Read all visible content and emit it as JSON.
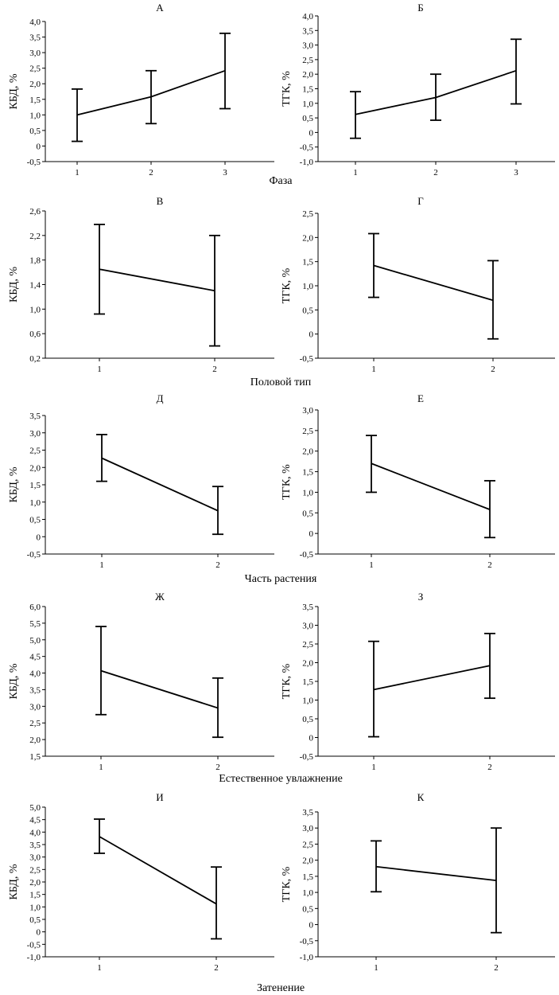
{
  "chart_data": [
    {
      "type": "line",
      "title": "А",
      "ylabel": "КБД, %",
      "ylim": [
        -0.5,
        4.0
      ],
      "yticks": [
        "-0,5",
        "0",
        "0,5",
        "1,0",
        "1,5",
        "2,0",
        "2,5",
        "3,0",
        "3,5",
        "4,0"
      ],
      "x": [
        "1",
        "2",
        "3"
      ],
      "y": [
        1.0,
        1.58,
        2.42
      ],
      "err_low": [
        0.15,
        0.72,
        1.2
      ],
      "err_high": [
        1.83,
        2.42,
        3.62
      ]
    },
    {
      "type": "line",
      "title": "Б",
      "ylabel": "ТГК, %",
      "ylim": [
        -1.0,
        4.0
      ],
      "yticks": [
        "-1,0",
        "-0,5",
        "0",
        "0,5",
        "1,0",
        "1,5",
        "2,0",
        "2,5",
        "3,0",
        "3,5",
        "4,0"
      ],
      "x": [
        "1",
        "2",
        "3"
      ],
      "y": [
        0.62,
        1.2,
        2.12
      ],
      "err_low": [
        -0.2,
        0.42,
        0.98
      ],
      "err_high": [
        1.4,
        2.0,
        3.2
      ]
    },
    {
      "type": "line",
      "title": "В",
      "ylabel": "КБД, %",
      "ylim": [
        0.2,
        2.6
      ],
      "yticks": [
        "0,2",
        "0,6",
        "1,0",
        "1,4",
        "1,8",
        "2,2",
        "2,6"
      ],
      "x": [
        "1",
        "2"
      ],
      "y": [
        1.65,
        1.3
      ],
      "err_low": [
        0.92,
        0.4
      ],
      "err_high": [
        2.38,
        2.2
      ]
    },
    {
      "type": "line",
      "title": "Г",
      "ylabel": "ТГК, %",
      "ylim": [
        -0.5,
        2.5
      ],
      "yticks": [
        "-0,5",
        "0",
        "0,5",
        "1,0",
        "1,5",
        "2,0",
        "2,5"
      ],
      "x": [
        "1",
        "2"
      ],
      "y": [
        1.42,
        0.7
      ],
      "err_low": [
        0.76,
        -0.1
      ],
      "err_high": [
        2.08,
        1.52
      ]
    },
    {
      "type": "line",
      "title": "Д",
      "ylabel": "КБД, %",
      "ylim": [
        -0.5,
        3.5
      ],
      "yticks": [
        "-0,5",
        "0",
        "0,5",
        "1,0",
        "1,5",
        "2,0",
        "2,5",
        "3,0",
        "3,5"
      ],
      "x": [
        "1",
        "2"
      ],
      "y": [
        2.27,
        0.75
      ],
      "err_low": [
        1.6,
        0.07
      ],
      "err_high": [
        2.95,
        1.45
      ]
    },
    {
      "type": "line",
      "title": "Е",
      "ylabel": "ТГК, %",
      "ylim": [
        -0.5,
        3.0
      ],
      "yticks": [
        "-0,5",
        "0",
        "0,5",
        "1,0",
        "1,5",
        "2,0",
        "2,5",
        "3,0"
      ],
      "x": [
        "1",
        "2"
      ],
      "y": [
        1.7,
        0.58
      ],
      "err_low": [
        1.0,
        -0.1
      ],
      "err_high": [
        2.38,
        1.28
      ]
    },
    {
      "type": "line",
      "title": "Ж",
      "ylabel": "КБД, %",
      "ylim": [
        1.5,
        6.0
      ],
      "yticks": [
        "1,5",
        "2,0",
        "2,5",
        "3,0",
        "3,5",
        "4,0",
        "4,5",
        "5,0",
        "5,5",
        "6,0"
      ],
      "x": [
        "1",
        "2"
      ],
      "y": [
        4.07,
        2.95
      ],
      "err_low": [
        2.75,
        2.07
      ],
      "err_high": [
        5.4,
        3.85
      ]
    },
    {
      "type": "line",
      "title": "З",
      "ylabel": "ТГК, %",
      "ylim": [
        -0.5,
        3.5
      ],
      "yticks": [
        "-0,5",
        "0",
        "0,5",
        "1,0",
        "1,5",
        "2,0",
        "2,5",
        "3,0",
        "3,5"
      ],
      "x": [
        "1",
        "2"
      ],
      "y": [
        1.28,
        1.92
      ],
      "err_low": [
        0.02,
        1.05
      ],
      "err_high": [
        2.57,
        2.78
      ]
    },
    {
      "type": "line",
      "title": "И",
      "ylabel": "КБД, %",
      "ylim": [
        -1.0,
        5.0
      ],
      "yticks": [
        "-1,0",
        "-0,5",
        "0",
        "0,5",
        "1,0",
        "1,5",
        "2,0",
        "2,5",
        "3,0",
        "3,5",
        "4,0",
        "4,5",
        "5,0"
      ],
      "x": [
        "1",
        "2"
      ],
      "y": [
        3.82,
        1.12
      ],
      "err_low": [
        3.15,
        -0.28
      ],
      "err_high": [
        4.52,
        2.6
      ]
    },
    {
      "type": "line",
      "title": "К",
      "ylabel": "ТГК, %",
      "ylim": [
        -1.0,
        3.5
      ],
      "yticks": [
        "-1,0",
        "-0,5",
        "0",
        "0,5",
        "1,0",
        "1,5",
        "2,0",
        "2,5",
        "3,0",
        "3,5"
      ],
      "x": [
        "1",
        "2"
      ],
      "y": [
        1.8,
        1.37
      ],
      "err_low": [
        1.02,
        -0.25
      ],
      "err_high": [
        2.6,
        3.0
      ]
    }
  ],
  "group_labels": [
    "Фаза",
    "Половой тип",
    "Часть растения",
    "Естественное увлажнение",
    "Затенение"
  ]
}
